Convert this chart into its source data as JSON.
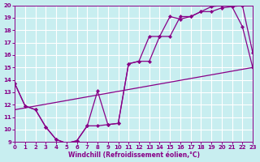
{
  "xlabel": "Windchill (Refroidissement éolien,°C)",
  "bg_color": "#c8eef0",
  "line_color": "#880088",
  "grid_color": "#ffffff",
  "xlim": [
    0,
    23
  ],
  "ylim": [
    9,
    20
  ],
  "xticks": [
    0,
    1,
    2,
    3,
    4,
    5,
    6,
    7,
    8,
    9,
    10,
    11,
    12,
    13,
    14,
    15,
    16,
    17,
    18,
    19,
    20,
    21,
    22,
    23
  ],
  "yticks": [
    9,
    10,
    11,
    12,
    13,
    14,
    15,
    16,
    17,
    18,
    19,
    20
  ],
  "line1_x": [
    0,
    1,
    2,
    3,
    4,
    5,
    6,
    7,
    8,
    9,
    10,
    11,
    12,
    13,
    14,
    15,
    16,
    17,
    18,
    19,
    20,
    21,
    22,
    23
  ],
  "line1_y": [
    13.7,
    11.9,
    11.6,
    10.2,
    9.2,
    8.9,
    9.1,
    10.3,
    13.1,
    10.4,
    10.5,
    15.3,
    15.5,
    17.5,
    17.5,
    19.1,
    18.9,
    19.1,
    19.5,
    19.5,
    19.8,
    19.9,
    20.0,
    16.2
  ],
  "line2_x": [
    0,
    1,
    2,
    3,
    4,
    5,
    6,
    7,
    8,
    9,
    10,
    11,
    12,
    13,
    14,
    15,
    16,
    17,
    18,
    19,
    20,
    21,
    22,
    23
  ],
  "line2_y": [
    13.7,
    11.9,
    11.6,
    10.2,
    9.2,
    8.9,
    9.1,
    10.3,
    10.3,
    10.4,
    10.5,
    15.3,
    15.5,
    15.5,
    17.5,
    17.5,
    19.1,
    19.1,
    19.5,
    19.9,
    20.0,
    19.9,
    18.3,
    15.0
  ],
  "line3_x": [
    0,
    23
  ],
  "line3_y": [
    11.6,
    15.0
  ]
}
